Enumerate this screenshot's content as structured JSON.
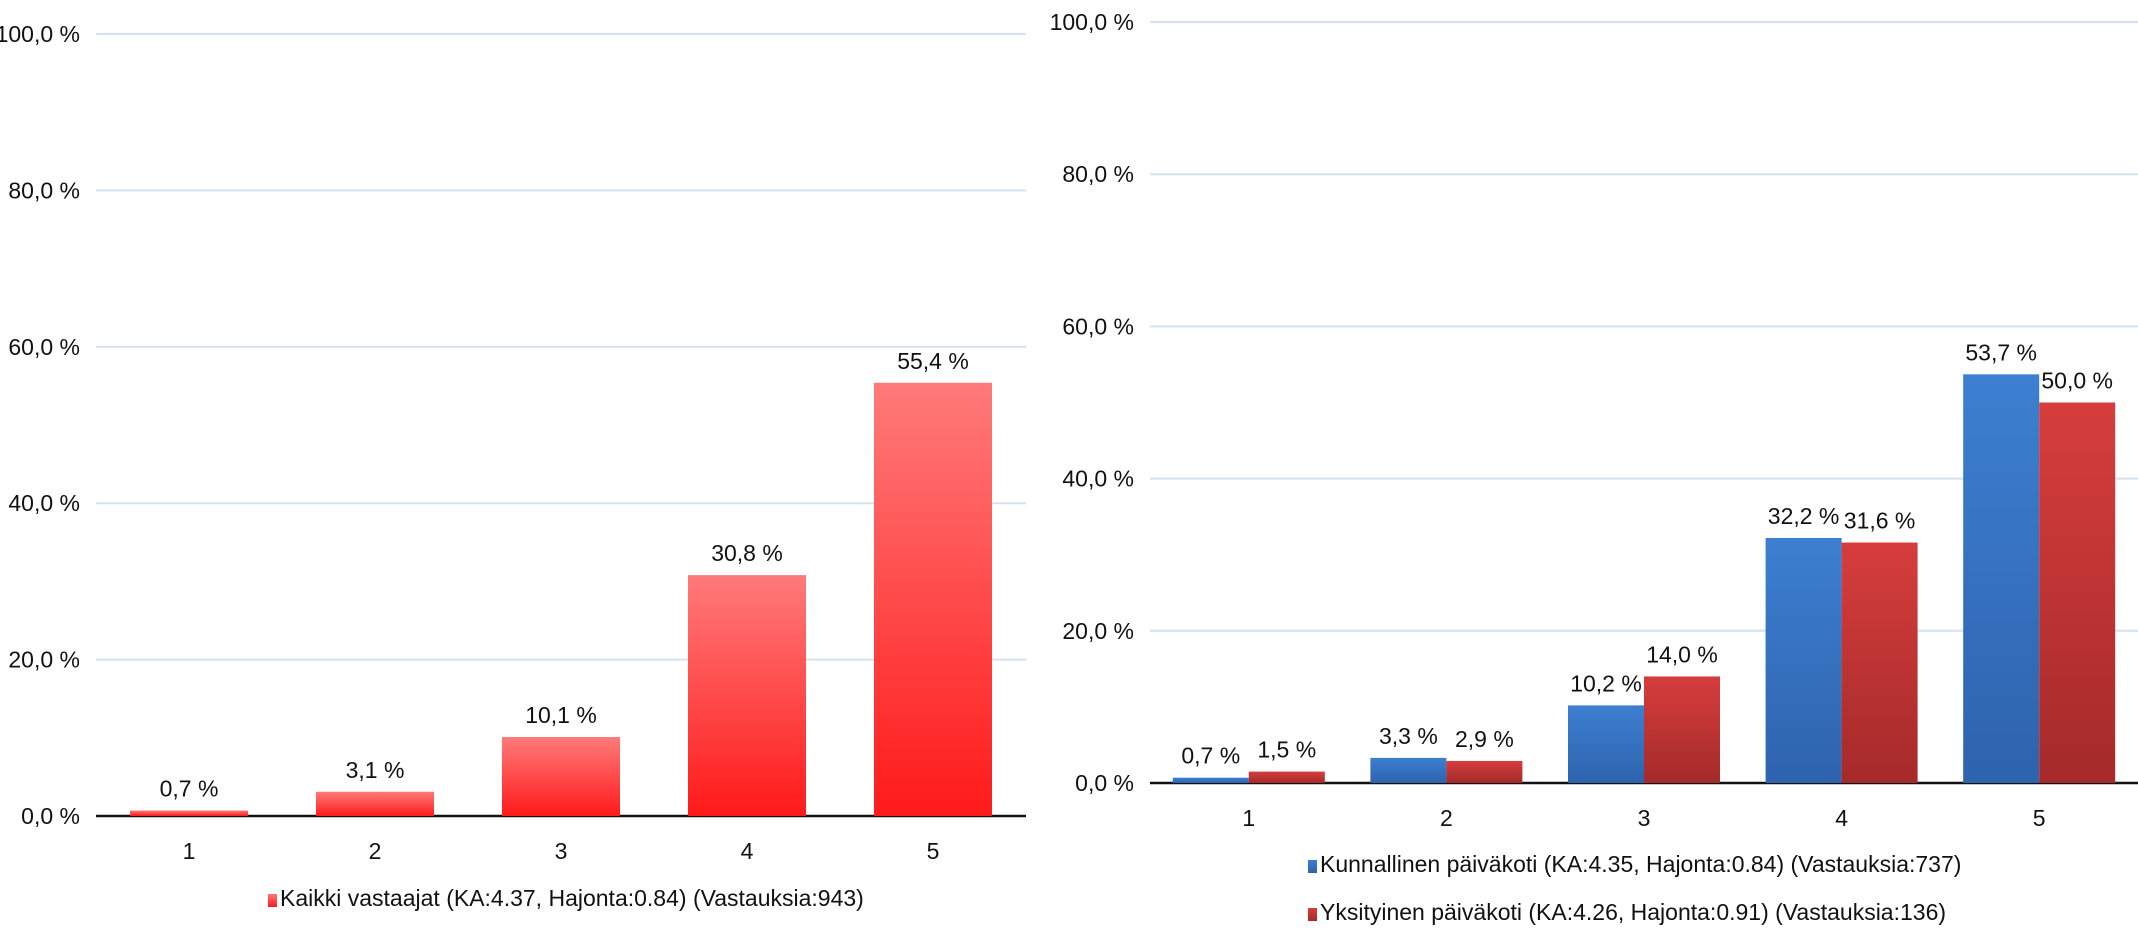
{
  "chart_data": [
    {
      "type": "bar",
      "categories": [
        "1",
        "2",
        "3",
        "4",
        "5"
      ],
      "series": [
        {
          "name": "Kaikki vastaajat (KA:4.37, Hajonta:0.84) (Vastauksia:943)",
          "values": [
            0.7,
            3.1,
            10.1,
            30.8,
            55.4
          ],
          "labels": [
            "0,7 %",
            "3,1 %",
            "10,1 %",
            "30,8 %",
            "55,4 %"
          ],
          "color": "#ff1a1a",
          "color_light": "#ff7a7a"
        }
      ],
      "ylim": [
        0,
        100
      ],
      "yticks": [
        0,
        20,
        40,
        60,
        80,
        100
      ],
      "yticklabels": [
        "0,0 %",
        "20,0 %",
        "40,0 %",
        "60,0 %",
        "80,0 %",
        "100,0 %"
      ],
      "grid": true,
      "legend_position": "bottom"
    },
    {
      "type": "bar",
      "categories": [
        "1",
        "2",
        "3",
        "4",
        "5"
      ],
      "series": [
        {
          "name": "Kunnallinen päiväkoti (KA:4.35, Hajonta:0.84) (Vastauksia:737)",
          "values": [
            0.7,
            3.3,
            10.2,
            32.2,
            53.7
          ],
          "labels": [
            "0,7 %",
            "3,3 %",
            "10,2 %",
            "32,2 %",
            "53,7 %"
          ],
          "color": "#2e63ad",
          "color_light": "#3d7fd1"
        },
        {
          "name": "Yksityinen päiväkoti (KA:4.26, Hajonta:0.91) (Vastauksia:136)",
          "values": [
            1.5,
            2.9,
            14.0,
            31.6,
            50.0
          ],
          "labels": [
            "1,5 %",
            "2,9 %",
            "14,0 %",
            "31,6 %",
            "50,0 %"
          ],
          "color": "#a52a2a",
          "color_light": "#d63d3d"
        }
      ],
      "ylim": [
        0,
        100
      ],
      "yticks": [
        0,
        20,
        40,
        60,
        80,
        100
      ],
      "yticklabels": [
        "0,0 %",
        "20,0 %",
        "40,0 %",
        "60,0 %",
        "80,0 %",
        "100,0 %"
      ],
      "grid": true,
      "legend_position": "bottom"
    }
  ]
}
